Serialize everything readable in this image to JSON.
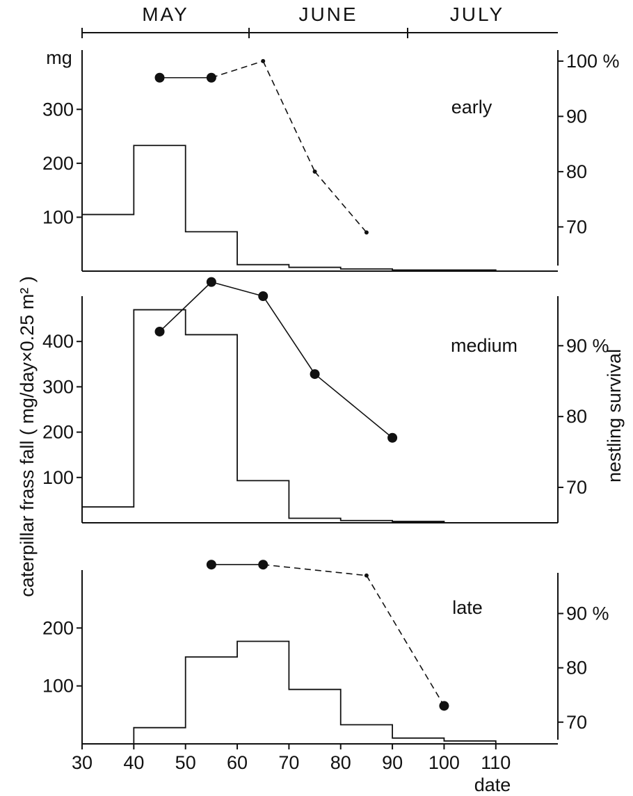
{
  "months": [
    "MAY",
    "JUNE",
    "JULY"
  ],
  "y_left_title": "caterpillar  frass  fall  ( mg/day×0.25 m² )",
  "y_right_title": "nestling  survival",
  "x_title": "date",
  "chart_data": [
    {
      "name": "early",
      "type": "step+line",
      "left_unit_label": "mg",
      "frass": {
        "bins": [
          [
            30,
            40
          ],
          [
            40,
            50
          ],
          [
            50,
            60
          ],
          [
            60,
            70
          ],
          [
            70,
            80
          ],
          [
            80,
            90
          ],
          [
            90,
            100
          ],
          [
            100,
            110
          ]
        ],
        "values": [
          105,
          233,
          73,
          12,
          7,
          4,
          2,
          2
        ]
      },
      "survival": {
        "x": [
          45,
          55,
          65,
          75,
          85
        ],
        "values": [
          97,
          97,
          100,
          80,
          69
        ],
        "large_marker": [
          true,
          true,
          false,
          false,
          false
        ],
        "line_style": [
          "solid",
          "dashed",
          "dashed",
          "dashed"
        ]
      },
      "left_ticks": [
        "100",
        "200",
        "300"
      ],
      "right_ticks": [
        "70",
        "80",
        "90",
        "100 %"
      ],
      "left_ylim": [
        0,
        410
      ],
      "right_ylim": [
        62,
        102
      ]
    },
    {
      "name": "medium",
      "type": "step+line",
      "frass": {
        "bins": [
          [
            30,
            40
          ],
          [
            40,
            50
          ],
          [
            50,
            60
          ],
          [
            60,
            70
          ],
          [
            70,
            80
          ],
          [
            80,
            90
          ],
          [
            90,
            100
          ]
        ],
        "values": [
          35,
          470,
          415,
          93,
          10,
          5,
          3
        ]
      },
      "survival": {
        "x": [
          45,
          55,
          65,
          75,
          90
        ],
        "values": [
          92,
          99,
          97,
          86,
          77
        ],
        "large_marker": [
          true,
          true,
          true,
          true,
          true
        ],
        "line_style": [
          "solid",
          "solid",
          "solid",
          "solid"
        ]
      },
      "left_ticks": [
        "100",
        "200",
        "300",
        "400"
      ],
      "right_ticks": [
        "70",
        "80",
        "90 %"
      ],
      "left_ylim": [
        0,
        500
      ],
      "right_ylim": [
        65,
        97
      ]
    },
    {
      "name": "late",
      "type": "step+line",
      "frass": {
        "bins": [
          [
            30,
            40
          ],
          [
            40,
            50
          ],
          [
            50,
            60
          ],
          [
            60,
            70
          ],
          [
            70,
            80
          ],
          [
            80,
            90
          ],
          [
            90,
            100
          ],
          [
            100,
            110
          ]
        ],
        "values": [
          0,
          28,
          150,
          177,
          94,
          33,
          10,
          5
        ]
      },
      "survival": {
        "x": [
          55,
          65,
          85,
          100
        ],
        "values": [
          99,
          99,
          97,
          73
        ],
        "large_marker": [
          true,
          true,
          false,
          true
        ],
        "line_style": [
          "solid",
          "dashed",
          "dashed"
        ]
      },
      "left_ticks": [
        "100",
        "200"
      ],
      "right_ticks": [
        "70",
        "80",
        "90 %"
      ],
      "left_ylim": [
        0,
        300
      ],
      "right_ylim": [
        66,
        98
      ]
    }
  ],
  "x_axis": {
    "ticks": [
      "30",
      "40",
      "50",
      "60",
      "70",
      "80",
      "90",
      "100",
      "110"
    ],
    "xlim": [
      30,
      122
    ]
  }
}
